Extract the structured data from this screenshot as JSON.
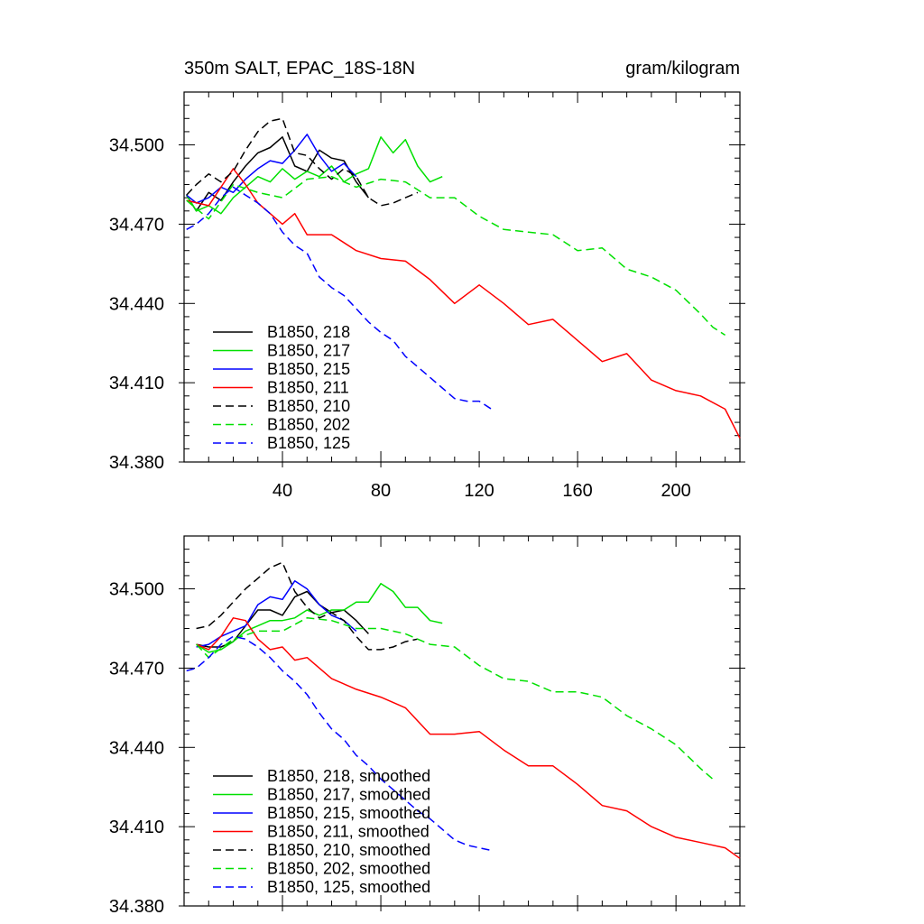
{
  "chart_data": [
    {
      "type": "line",
      "title": "350m SALT, EPAC_18S-18N",
      "units": "gram/kilogram",
      "xlabel": "",
      "ylabel": "",
      "xlim": [
        0,
        226
      ],
      "ylim": [
        34.38,
        34.52
      ],
      "xticks": [
        40,
        80,
        120,
        160,
        200
      ],
      "yticks": [
        34.38,
        34.41,
        34.44,
        34.47,
        34.5
      ],
      "ytick_labels": [
        "34.380",
        "34.410",
        "34.440",
        "34.470",
        "34.500"
      ],
      "legend_position": "bottom-left",
      "series": [
        {
          "name": "B1850, 218",
          "color": "#000000",
          "dash": "solid",
          "x": [
            1,
            5,
            10,
            15,
            20,
            25,
            30,
            35,
            40,
            45,
            50,
            55,
            60,
            65,
            70,
            75
          ],
          "y": [
            34.481,
            34.475,
            34.482,
            34.479,
            34.486,
            34.492,
            34.497,
            34.499,
            34.503,
            34.492,
            34.49,
            34.498,
            34.495,
            34.494,
            34.486,
            34.48
          ]
        },
        {
          "name": "B1850, 217",
          "color": "#00e000",
          "dash": "solid",
          "x": [
            1,
            5,
            10,
            15,
            20,
            25,
            30,
            35,
            40,
            45,
            50,
            55,
            60,
            65,
            70,
            75,
            80,
            85,
            90,
            95,
            100,
            105
          ],
          "y": [
            34.481,
            34.475,
            34.477,
            34.474,
            34.48,
            34.484,
            34.488,
            34.486,
            34.491,
            34.487,
            34.49,
            34.488,
            34.492,
            34.486,
            34.489,
            34.491,
            34.503,
            34.497,
            34.502,
            34.492,
            34.486,
            34.488
          ]
        },
        {
          "name": "B1850, 215",
          "color": "#0000ff",
          "dash": "solid",
          "x": [
            1,
            5,
            10,
            15,
            20,
            25,
            30,
            35,
            40,
            45,
            50,
            55,
            60,
            65,
            70
          ],
          "y": [
            34.481,
            34.478,
            34.48,
            34.484,
            34.482,
            34.487,
            34.491,
            34.494,
            34.493,
            34.498,
            34.504,
            34.496,
            34.49,
            34.493,
            34.488
          ]
        },
        {
          "name": "B1850, 211",
          "color": "#ff0000",
          "dash": "solid",
          "x": [
            1,
            10,
            20,
            25,
            30,
            35,
            40,
            45,
            50,
            60,
            70,
            80,
            90,
            100,
            110,
            120,
            130,
            140,
            150,
            160,
            170,
            180,
            190,
            200,
            210,
            220,
            226
          ],
          "y": [
            34.479,
            34.477,
            34.491,
            34.485,
            34.478,
            34.474,
            34.47,
            34.474,
            34.466,
            34.466,
            34.46,
            34.457,
            34.456,
            34.449,
            34.44,
            34.447,
            34.44,
            34.432,
            34.434,
            34.426,
            34.418,
            34.421,
            34.411,
            34.407,
            34.405,
            34.4,
            34.389
          ]
        },
        {
          "name": "B1850, 210",
          "color": "#000000",
          "dash": "dashed",
          "x": [
            1,
            5,
            10,
            15,
            20,
            25,
            30,
            35,
            40,
            45,
            50,
            55,
            60,
            65,
            70,
            75,
            80,
            85,
            90,
            95
          ],
          "y": [
            34.481,
            34.485,
            34.489,
            34.486,
            34.49,
            34.498,
            34.505,
            34.509,
            34.51,
            34.497,
            34.496,
            34.491,
            34.487,
            34.491,
            34.488,
            34.48,
            34.477,
            34.478,
            34.48,
            34.482
          ]
        },
        {
          "name": "B1850, 202",
          "color": "#00e000",
          "dash": "dashed",
          "x": [
            1,
            10,
            20,
            30,
            40,
            50,
            60,
            70,
            80,
            90,
            100,
            110,
            120,
            130,
            140,
            150,
            160,
            170,
            180,
            190,
            200,
            210,
            215,
            220
          ],
          "y": [
            34.479,
            34.472,
            34.485,
            34.482,
            34.48,
            34.487,
            34.488,
            34.484,
            34.487,
            34.486,
            34.48,
            34.48,
            34.473,
            34.468,
            34.467,
            34.466,
            34.46,
            34.461,
            34.453,
            34.45,
            34.445,
            34.436,
            34.431,
            34.428
          ]
        },
        {
          "name": "B1850, 125",
          "color": "#0000ff",
          "dash": "dashed",
          "x": [
            1,
            5,
            10,
            15,
            20,
            25,
            30,
            35,
            40,
            45,
            50,
            55,
            60,
            65,
            70,
            75,
            80,
            85,
            90,
            95,
            100,
            105,
            110,
            115,
            120,
            125
          ],
          "y": [
            34.468,
            34.47,
            34.474,
            34.48,
            34.484,
            34.481,
            34.478,
            34.474,
            34.467,
            34.462,
            34.459,
            34.45,
            34.446,
            34.443,
            34.438,
            34.433,
            34.429,
            34.426,
            34.42,
            34.416,
            34.412,
            34.408,
            34.404,
            34.403,
            34.403,
            34.4
          ]
        }
      ]
    },
    {
      "type": "line",
      "title": "",
      "xlabel": "",
      "ylabel": "",
      "xlim": [
        0,
        226
      ],
      "ylim": [
        34.38,
        34.52
      ],
      "xticks": [
        40,
        80,
        120,
        160,
        200
      ],
      "yticks": [
        34.38,
        34.41,
        34.44,
        34.47,
        34.5
      ],
      "ytick_labels": [
        "34.380",
        "34.410",
        "34.440",
        "34.470",
        "34.500"
      ],
      "legend_position": "bottom-left",
      "series": [
        {
          "name": "B1850, 218, smoothed",
          "color": "#000000",
          "dash": "solid",
          "x": [
            5,
            10,
            15,
            20,
            25,
            30,
            35,
            40,
            45,
            50,
            55,
            60,
            65,
            70,
            75
          ],
          "y": [
            34.479,
            34.478,
            34.478,
            34.48,
            34.486,
            34.492,
            34.492,
            34.49,
            34.497,
            34.499,
            34.494,
            34.491,
            34.492,
            34.488,
            34.483
          ]
        },
        {
          "name": "B1850, 217, smoothed",
          "color": "#00e000",
          "dash": "solid",
          "x": [
            5,
            10,
            15,
            20,
            25,
            30,
            35,
            40,
            45,
            50,
            55,
            60,
            65,
            70,
            75,
            80,
            85,
            90,
            95,
            100,
            105
          ],
          "y": [
            34.479,
            34.476,
            34.477,
            34.48,
            34.484,
            34.486,
            34.488,
            34.488,
            34.489,
            34.492,
            34.49,
            34.492,
            34.492,
            34.495,
            34.495,
            34.502,
            34.499,
            34.493,
            34.493,
            34.488,
            34.487
          ]
        },
        {
          "name": "B1850, 215, smoothed",
          "color": "#0000ff",
          "dash": "solid",
          "x": [
            5,
            10,
            15,
            20,
            25,
            30,
            35,
            40,
            45,
            50,
            55,
            60,
            65,
            70
          ],
          "y": [
            34.478,
            34.479,
            34.482,
            34.484,
            34.486,
            34.494,
            34.497,
            34.496,
            34.503,
            34.5,
            34.494,
            34.49,
            34.488,
            34.484
          ]
        },
        {
          "name": "B1850, 211, smoothed",
          "color": "#ff0000",
          "dash": "solid",
          "x": [
            5,
            10,
            15,
            20,
            25,
            30,
            35,
            40,
            45,
            50,
            60,
            70,
            80,
            90,
            100,
            110,
            120,
            130,
            140,
            150,
            160,
            170,
            180,
            190,
            200,
            210,
            220,
            226
          ],
          "y": [
            34.479,
            34.477,
            34.482,
            34.489,
            34.488,
            34.481,
            34.477,
            34.478,
            34.473,
            34.474,
            34.466,
            34.462,
            34.459,
            34.455,
            34.445,
            34.445,
            34.446,
            34.439,
            34.433,
            34.433,
            34.426,
            34.418,
            34.416,
            34.41,
            34.406,
            34.404,
            34.402,
            34.398
          ]
        },
        {
          "name": "B1850, 210, smoothed",
          "color": "#000000",
          "dash": "dashed",
          "x": [
            5,
            10,
            15,
            20,
            25,
            30,
            35,
            40,
            45,
            50,
            55,
            60,
            65,
            70,
            75,
            80,
            85,
            90,
            95
          ],
          "y": [
            34.485,
            34.486,
            34.49,
            34.495,
            34.5,
            34.504,
            34.508,
            34.51,
            34.499,
            34.493,
            34.489,
            34.491,
            34.488,
            34.482,
            34.477,
            34.477,
            34.478,
            34.48,
            34.481
          ]
        },
        {
          "name": "B1850, 202, smoothed",
          "color": "#00e000",
          "dash": "dashed",
          "x": [
            5,
            10,
            20,
            30,
            40,
            50,
            60,
            70,
            80,
            90,
            100,
            110,
            120,
            130,
            140,
            150,
            160,
            170,
            180,
            190,
            200,
            210,
            215
          ],
          "y": [
            34.479,
            34.474,
            34.481,
            34.484,
            34.484,
            34.489,
            34.488,
            34.485,
            34.485,
            34.483,
            34.479,
            34.478,
            34.471,
            34.466,
            34.465,
            34.461,
            34.461,
            34.459,
            34.452,
            34.447,
            34.441,
            34.432,
            34.428
          ]
        },
        {
          "name": "B1850, 125, smoothed",
          "color": "#0000ff",
          "dash": "dashed",
          "x": [
            1,
            5,
            10,
            15,
            20,
            25,
            30,
            35,
            40,
            45,
            50,
            55,
            60,
            65,
            70,
            75,
            80,
            85,
            90,
            95,
            100,
            105,
            110,
            115,
            120,
            125
          ],
          "y": [
            34.469,
            34.47,
            34.474,
            34.479,
            34.482,
            34.481,
            34.478,
            34.474,
            34.469,
            34.465,
            34.46,
            34.453,
            34.447,
            34.443,
            34.437,
            34.433,
            34.428,
            34.424,
            34.42,
            34.416,
            34.413,
            34.409,
            34.405,
            34.403,
            34.402,
            34.401
          ]
        }
      ]
    }
  ]
}
